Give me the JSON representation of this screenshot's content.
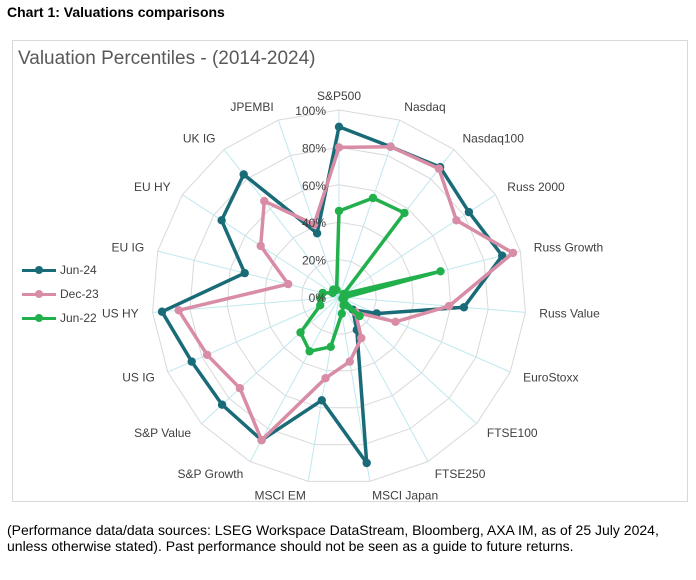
{
  "heading": "Chart 1: Valuations comparisons",
  "source_note": "(Performance data/data sources: LSEG Workspace DataStream, Bloomberg, AXA IM, as of 25 July 2024, unless otherwise stated). Past performance should not be seen as a guide to future returns.",
  "colors": {
    "Jun-24": "#1a6b78",
    "Dec-23": "#d98ca5",
    "Jun-22": "#22b04c",
    "grid": "#d9d9d9",
    "spoke": "#bfe8ef"
  },
  "chart_data": {
    "type": "radar",
    "title": "Valuation Percentiles - (2014-2024)",
    "categories": [
      "S&P500",
      "Nasdaq",
      "Nasdaq100",
      "Russ 2000",
      "Russ Growth",
      "Russ Value",
      "EuroStoxx",
      "FTSE100",
      "FTSE250",
      "MSCI Japan",
      "MSCI EM",
      "S&P Growth",
      "S&P Value",
      "US IG",
      "US HY",
      "EU IG",
      "EU HY",
      "UK IG",
      "JPEMBI"
    ],
    "r_ticks": [
      "0%",
      "20%",
      "40%",
      "60%",
      "80%",
      "100%"
    ],
    "r_range": [
      0,
      1
    ],
    "series": [
      {
        "name": "Jun-24",
        "values": [
          0.91,
          0.85,
          0.88,
          0.83,
          0.9,
          0.67,
          0.22,
          0.1,
          0.2,
          0.9,
          0.56,
          0.87,
          0.85,
          0.86,
          0.95,
          0.52,
          0.75,
          0.83,
          0.36
        ]
      },
      {
        "name": "Dec-23",
        "values": [
          0.8,
          0.85,
          0.87,
          0.75,
          0.96,
          0.59,
          0.33,
          0.12,
          0.25,
          0.35,
          0.44,
          0.87,
          0.72,
          0.77,
          0.86,
          0.28,
          0.5,
          0.65,
          0.41
        ]
      },
      {
        "name": "Jun-22",
        "values": [
          0.46,
          0.56,
          0.57,
          0.03,
          0.56,
          0.03,
          0.02,
          0.15,
          0.05,
          0.09,
          0.27,
          0.33,
          0.28,
          0.11,
          0.1,
          0.09,
          0.04,
          0.05,
          0.04
        ]
      }
    ],
    "legend": [
      "Jun-24",
      "Dec-23",
      "Jun-22"
    ],
    "legend_position": "left"
  }
}
